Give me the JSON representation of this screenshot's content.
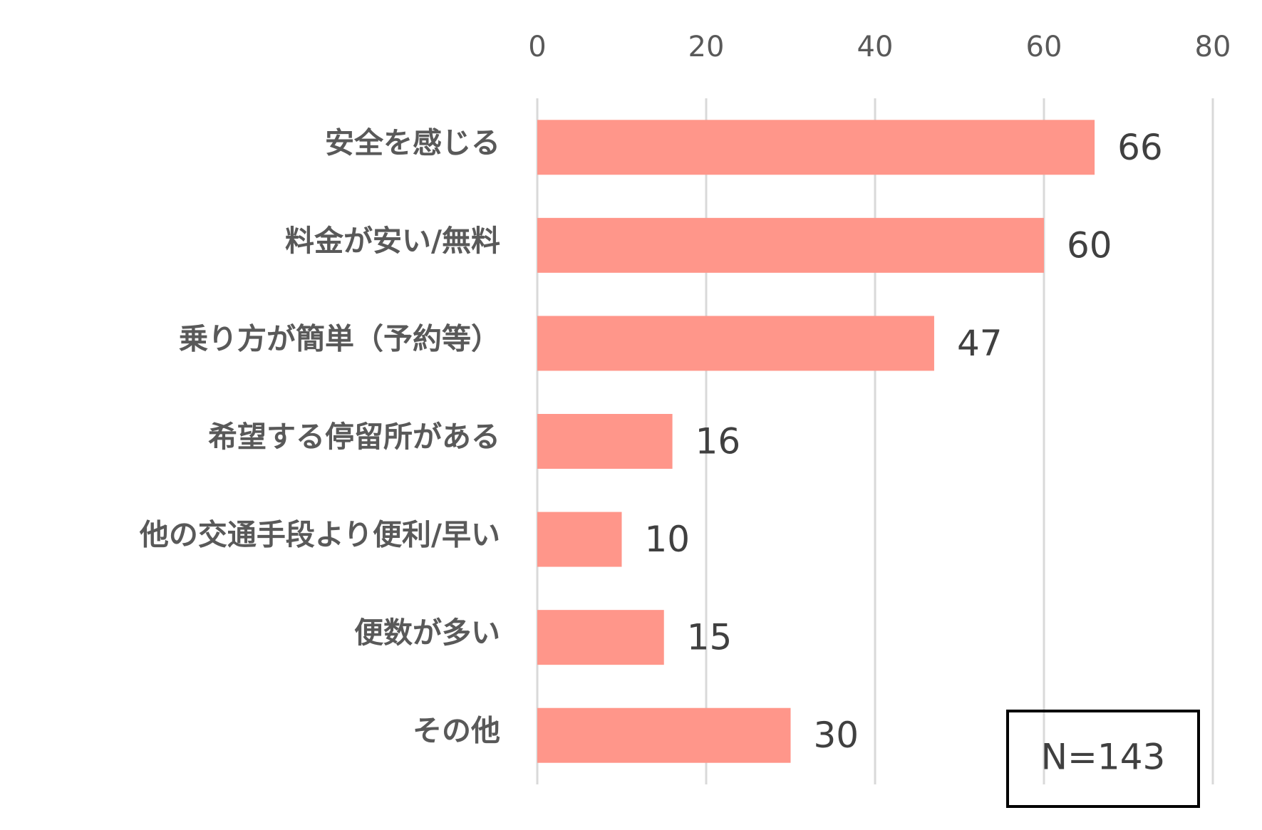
{
  "chart_data": {
    "type": "bar",
    "orientation": "horizontal",
    "categories": [
      "安全を感じる",
      "料金が安い/無料",
      "乗り方が簡単（予約等）",
      "希望する停留所がある",
      "他の交通手段より便利/早い",
      "便数が多い",
      "その他"
    ],
    "values": [
      66,
      60,
      47,
      16,
      10,
      15,
      30
    ],
    "color": "#ff968a",
    "xlim": [
      0,
      80
    ],
    "xticks": [
      0,
      20,
      40,
      60,
      80
    ],
    "grid": true,
    "annotation": "N=143"
  }
}
